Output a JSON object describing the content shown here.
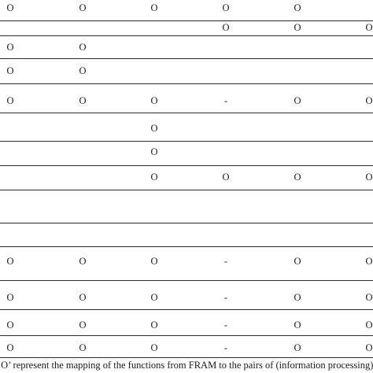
{
  "table": {
    "rows": [
      [
        "O",
        "O",
        "O",
        "O",
        "O",
        ""
      ],
      [
        "",
        "",
        "",
        "O",
        "O",
        "O"
      ],
      [
        "O",
        "O",
        "",
        "",
        "",
        ""
      ],
      [
        "O",
        "O",
        "",
        "",
        "",
        ""
      ],
      [
        "O",
        "O",
        "O",
        "-",
        "O",
        "O"
      ],
      [
        "",
        "",
        "O",
        "",
        "",
        ""
      ],
      [
        "",
        "",
        "O",
        "",
        "",
        ""
      ],
      [
        "",
        "",
        "O",
        "O",
        "O",
        "O"
      ],
      [
        "",
        "",
        "",
        "",
        "",
        ""
      ],
      [
        "",
        "",
        "",
        "",
        "",
        ""
      ],
      [
        "O",
        "O",
        "O",
        "-",
        "O",
        "O"
      ],
      [
        "O",
        "O",
        "O",
        "-",
        "O",
        "O"
      ],
      [
        "O",
        "O",
        "O",
        "-",
        "O",
        "O"
      ],
      [
        "O",
        "O",
        "O",
        "-",
        "O",
        "O"
      ]
    ]
  },
  "caption": "‘O’ represent the mapping of the functions from FRAM to the pairs of (information processing) a"
}
